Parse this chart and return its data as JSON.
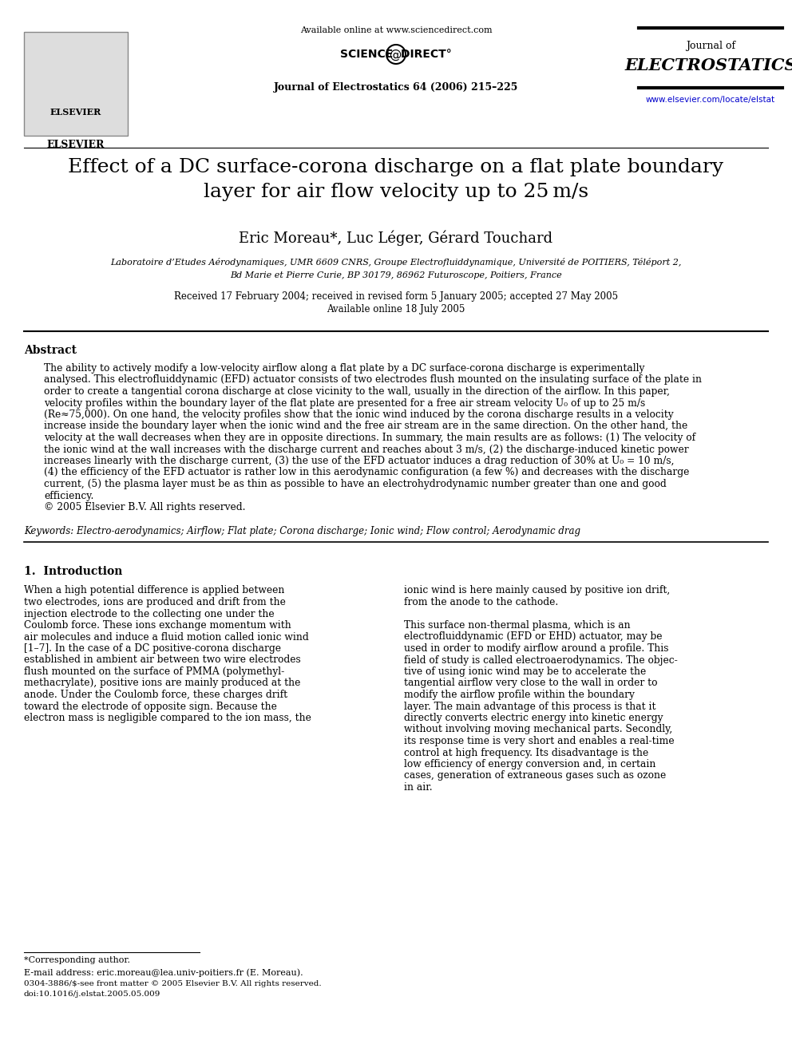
{
  "bg_color": "#ffffff",
  "header": {
    "available_online": "Available online at www.sciencedirect.com",
    "journal_info": "Journal of Electrostatics 64 (2006) 215–225",
    "journal_name_line1": "Journal of",
    "journal_name_line2": "ELECTROSTATICS",
    "url": "www.elsevier.com/locate/elstat",
    "elsevier_label": "ELSEVIER"
  },
  "title": "Effect of a DC surface-corona discharge on a flat plate boundary\nlayer for air flow velocity up to 25 m/s",
  "authors": "Eric Moreau*, Luc Léger, Gérard Touchard",
  "affiliation_line1": "Laboratoire d’Etudes Aérodynamiques, UMR 6609 CNRS, Groupe Electrofluiddynamique, Université de POITIERS, Téléport 2,",
  "affiliation_line2": "Bd Marie et Pierre Curie, BP 30179, 86962 Futuroscope, Poitiers, France",
  "received": "Received 17 February 2004; received in revised form 5 January 2005; accepted 27 May 2005",
  "available": "Available online 18 July 2005",
  "abstract_heading": "Abstract",
  "abstract_text": "The ability to actively modify a low-velocity airflow along a flat plate by a DC surface-corona discharge is experimentally\nanalysed. This electrofluiddynamic (EFD) actuator consists of two electrodes flush mounted on the insulating surface of the plate in\norder to create a tangential corona discharge at close vicinity to the wall, usually in the direction of the airflow. In this paper,\nvelocity profiles within the boundary layer of the flat plate are presented for a free air stream velocity U₀ of up to 25 m/s\n(Re≈75,000). On one hand, the velocity profiles show that the ionic wind induced by the corona discharge results in a velocity\nincrease inside the boundary layer when the ionic wind and the free air stream are in the same direction. On the other hand, the\nvelocity at the wall decreases when they are in opposite directions. In summary, the main results are as follows: (1) The velocity of\nthe ionic wind at the wall increases with the discharge current and reaches about 3 m/s, (2) the discharge-induced kinetic power\nincreases linearly with the discharge current, (3) the use of the EFD actuator induces a drag reduction of 30% at U₀ = 10 m/s,\n(4) the efficiency of the EFD actuator is rather low in this aerodynamic configuration (a few %) and decreases with the discharge\ncurrent, (5) the plasma layer must be as thin as possible to have an electrohydrodynamic number greater than one and good\nefficiency.\n© 2005 Elsevier B.V. All rights reserved.",
  "keywords": "Keywords: Electro-aerodynamics; Airflow; Flat plate; Corona discharge; Ionic wind; Flow control; Aerodynamic drag",
  "section1_heading": "1.  Introduction",
  "section1_col1": "When a high potential difference is applied between\ntwo electrodes, ions are produced and drift from the\ninjection electrode to the collecting one under the\nCoulomb force. These ions exchange momentum with\nair molecules and induce a fluid motion called ionic wind\n[1–7]. In the case of a DC positive-corona discharge\nestablished in ambient air between two wire electrodes\nflush mounted on the surface of PMMA (polymethyl-\nmethacrylate), positive ions are mainly produced at the\nanode. Under the Coulomb force, these charges drift\ntoward the electrode of opposite sign. Because the\nelectron mass is negligible compared to the ion mass, the",
  "section1_col2": "ionic wind is here mainly caused by positive ion drift,\nfrom the anode to the cathode.\n\nThis surface non-thermal plasma, which is an\nelectrofluiddynamic (EFD or EHD) actuator, may be\nused in order to modify airflow around a profile. This\nfield of study is called electroaerodynamics. The objec-\ntive of using ionic wind may be to accelerate the\ntangential airflow very close to the wall in order to\nmodify the airflow profile within the boundary\nlayer. The main advantage of this process is that it\ndirectly converts electric energy into kinetic energy\nwithout involving moving mechanical parts. Secondly,\nits response time is very short and enables a real-time\ncontrol at high frequency. Its disadvantage is the\nlow efficiency of energy conversion and, in certain\ncases, generation of extraneous gases such as ozone\nin air.",
  "footnote_star": "*Corresponding author.",
  "footnote_email": "E-mail address: eric.moreau@lea.univ-poitiers.fr (E. Moreau).",
  "footnote_bottom1": "0304-3886/$-see front matter © 2005 Elsevier B.V. All rights reserved.",
  "footnote_bottom2": "doi:10.1016/j.elstat.2005.05.009"
}
